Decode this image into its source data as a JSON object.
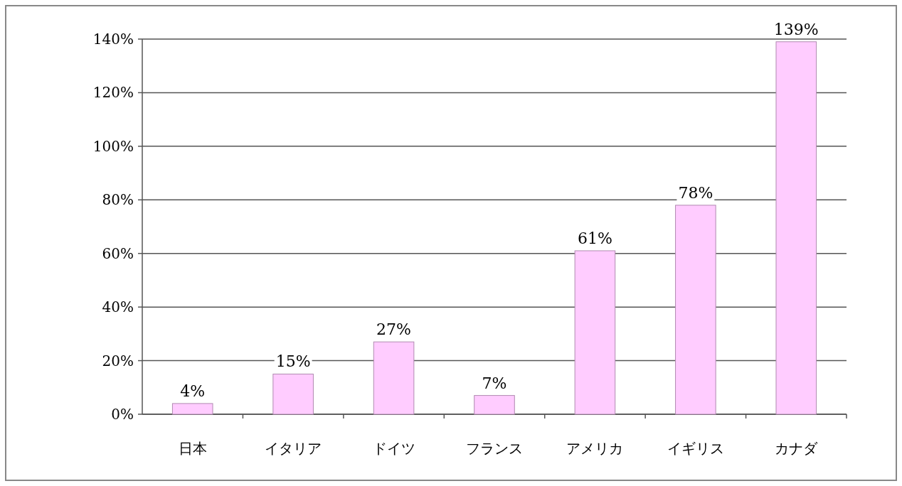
{
  "chart_data": {
    "type": "bar",
    "categories": [
      "日本",
      "イタリア",
      "ドイツ",
      "フランス",
      "アメリカ",
      "イギリス",
      "カナダ"
    ],
    "values": [
      4,
      15,
      27,
      7,
      61,
      78,
      139
    ],
    "value_labels": [
      "4%",
      "15%",
      "27%",
      "7%",
      "61%",
      "78%",
      "139%"
    ],
    "color": "#ffccff",
    "ylim": [
      0,
      140
    ],
    "yticks": [
      {
        "value": 0,
        "label": "0%"
      },
      {
        "value": 20,
        "label": "20%"
      },
      {
        "value": 40,
        "label": "40%"
      },
      {
        "value": 60,
        "label": "60%"
      },
      {
        "value": 80,
        "label": "80%"
      },
      {
        "value": 100,
        "label": "100%"
      },
      {
        "value": 120,
        "label": "120%"
      },
      {
        "value": 140,
        "label": "140%"
      }
    ],
    "grid": "y"
  }
}
